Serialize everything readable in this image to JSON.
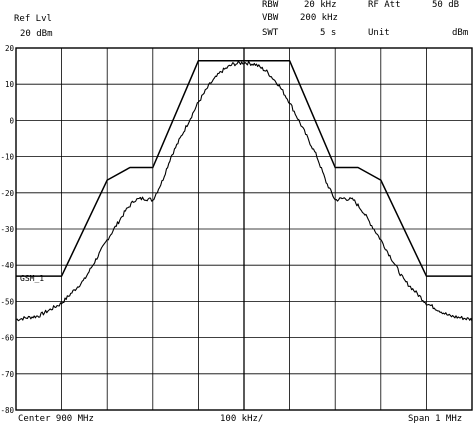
{
  "header": {
    "ref_lvl_label": "Ref Lvl",
    "ref_lvl_value": "20 dBm",
    "rbw_label": "RBW",
    "rbw_value": "20 kHz",
    "rf_att_label": "RF Att",
    "rf_att_value": "50 dB",
    "vbw_label": "VBW",
    "vbw_value": "200 kHz",
    "swt_label": "SWT",
    "swt_value": "5 s",
    "unit_label": "Unit",
    "unit_value": "dBm"
  },
  "footer": {
    "center": "Center 900 MHz",
    "div": "100 kHz/",
    "span": "Span 1 MHz"
  },
  "marker_label": "GSM_1",
  "chart_data": {
    "type": "line",
    "title": "",
    "xlabel": "",
    "ylabel": "",
    "x_unit": "kHz offset from center",
    "xlim": [
      -500,
      500
    ],
    "ylim": [
      -80,
      20
    ],
    "grid": true,
    "y_ticks": [
      "20",
      "10",
      "0",
      "-10",
      "-20",
      "-30",
      "-40",
      "-50",
      "-60",
      "-70",
      "-80"
    ],
    "series": [
      {
        "name": "GSM_1",
        "x": [
          -500,
          -400,
          -300,
          -250,
          -200,
          -100,
          -50,
          50,
          100,
          200,
          250,
          300,
          400,
          500
        ],
        "values": [
          -43,
          -43,
          -16.5,
          -13,
          -13,
          16.5,
          16.5,
          16.5,
          16.5,
          -13,
          -13,
          -16.5,
          -43,
          -43
        ]
      },
      {
        "name": "",
        "x": [
          -500,
          -450,
          -400,
          -350,
          -300,
          -260,
          -240,
          -220,
          -200,
          -180,
          -160,
          -140,
          -120,
          -100,
          -75,
          -50,
          -25,
          0,
          25,
          50,
          75,
          100,
          120,
          140,
          160,
          180,
          200,
          220,
          240,
          260,
          300,
          350,
          400,
          450,
          500
        ],
        "values": [
          -55,
          -54,
          -50.5,
          -44,
          -33,
          -25,
          -22,
          -21.5,
          -22,
          -17,
          -10,
          -5,
          0,
          5,
          10,
          13.5,
          15.5,
          16,
          15.5,
          13.5,
          10,
          5,
          0,
          -5,
          -10,
          -17,
          -22,
          -21.5,
          -22,
          -25,
          -33,
          -44,
          -50.5,
          -54,
          -55
        ]
      }
    ]
  }
}
